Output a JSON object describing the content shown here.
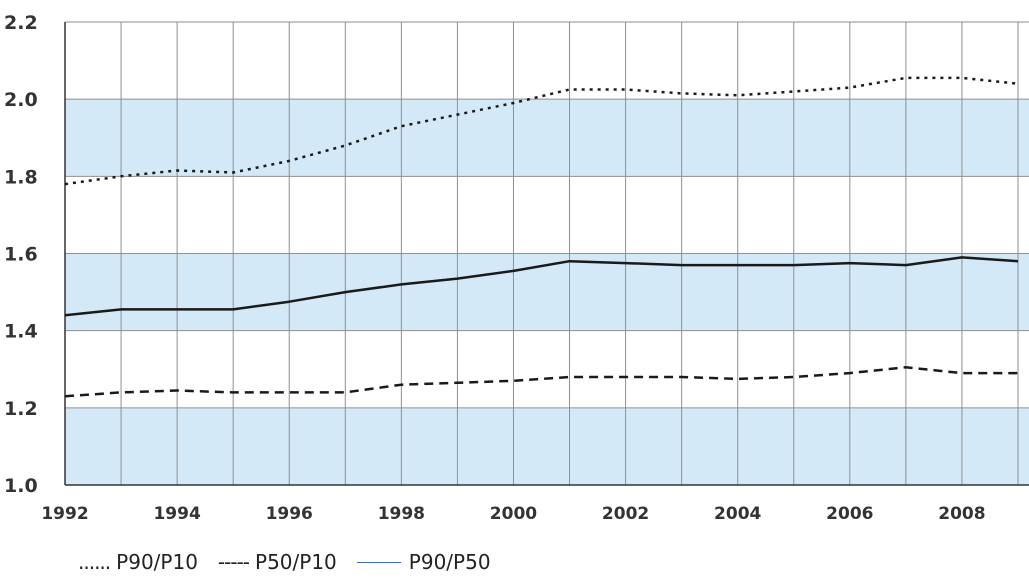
{
  "chart_data": {
    "type": "line",
    "x": [
      1992,
      1993,
      1994,
      1995,
      1996,
      1997,
      1998,
      1999,
      2000,
      2001,
      2002,
      2003,
      2004,
      2005,
      2006,
      2007,
      2008,
      2009
    ],
    "xticks": [
      "1992",
      "1994",
      "1996",
      "1998",
      "2000",
      "2002",
      "2004",
      "2006",
      "2008"
    ],
    "yticks": [
      "1.0",
      "1.2",
      "1.4",
      "1.6",
      "1.8",
      "2.0",
      "2.2"
    ],
    "xlim": [
      1992,
      2009
    ],
    "ylim": [
      1.0,
      2.2
    ],
    "grid": true,
    "series": [
      {
        "name": "P90/P10",
        "style": "dotted",
        "color": "#1a1a1a",
        "values": [
          1.78,
          1.8,
          1.815,
          1.81,
          1.84,
          1.88,
          1.93,
          1.96,
          1.99,
          2.025,
          2.025,
          2.015,
          2.01,
          2.02,
          2.03,
          2.055,
          2.055,
          2.04
        ]
      },
      {
        "name": "P50/P10",
        "style": "dashed",
        "color": "#1a1a1a",
        "values": [
          1.23,
          1.24,
          1.245,
          1.24,
          1.24,
          1.24,
          1.26,
          1.265,
          1.27,
          1.28,
          1.28,
          1.28,
          1.275,
          1.28,
          1.29,
          1.305,
          1.29,
          1.29
        ]
      },
      {
        "name": "P90/P50",
        "style": "solid",
        "color": "#1a1a1a",
        "values": [
          1.44,
          1.455,
          1.455,
          1.455,
          1.475,
          1.5,
          1.52,
          1.535,
          1.555,
          1.58,
          1.575,
          1.57,
          1.57,
          1.57,
          1.575,
          1.57,
          1.59,
          1.58
        ]
      }
    ],
    "band_color": "#d3e9f8",
    "legend": {
      "placement": "bottom",
      "items": [
        {
          "marker": "......",
          "label": "P90/P10"
        },
        {
          "marker": "-----",
          "label": "P50/P10"
        },
        {
          "marker": "line",
          "label": "P90/P50",
          "color": "#3f6fb5"
        }
      ]
    }
  }
}
